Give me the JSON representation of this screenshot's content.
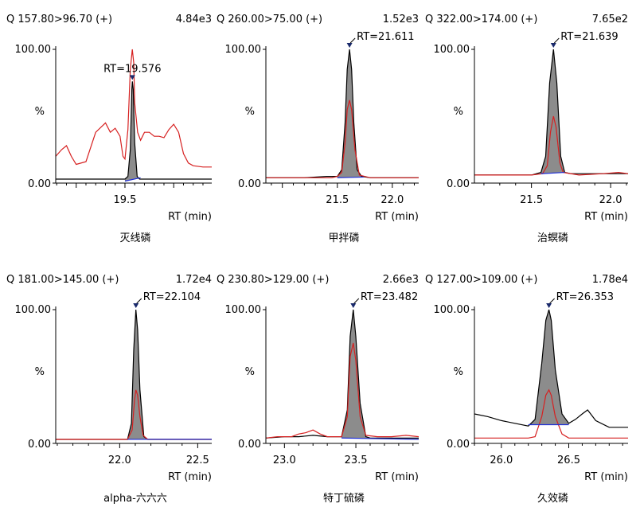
{
  "chart_data": [
    {
      "type": "line",
      "transition": "Q 157.80>96.70 (+)",
      "intensity": "4.84e3",
      "compound": "灭线磷",
      "rt_label": "RT=19.576",
      "ylabel": "%",
      "xlabel": "RT (min)",
      "ylim": [
        0,
        100
      ],
      "yticks": [
        "100.00",
        "0.00"
      ],
      "xlim": [
        18.79,
        20.39
      ],
      "xticks": [
        19.5
      ],
      "xtick_labels": [
        "19.5"
      ],
      "peak_rt": 19.576,
      "quant": {
        "x": [
          18.79,
          19.1,
          19.3,
          19.45,
          19.5,
          19.53,
          19.555,
          19.57,
          19.576,
          19.585,
          19.6,
          19.625,
          19.65,
          19.7,
          19.8,
          20.0,
          20.2,
          20.39
        ],
        "y": [
          3,
          3,
          3,
          3,
          3,
          5,
          25,
          70,
          76,
          70,
          30,
          5,
          3,
          3,
          3,
          3,
          3,
          3
        ]
      },
      "qual": {
        "x": [
          18.79,
          18.85,
          18.9,
          18.95,
          19.0,
          19.1,
          19.2,
          19.3,
          19.35,
          19.4,
          19.45,
          19.48,
          19.5,
          19.53,
          19.555,
          19.575,
          19.59,
          19.6,
          19.63,
          19.66,
          19.7,
          19.75,
          19.8,
          19.85,
          19.9,
          19.95,
          20.0,
          20.05,
          20.1,
          20.15,
          20.2,
          20.3,
          20.39
        ],
        "y": [
          20,
          25,
          28,
          20,
          14,
          16,
          38,
          45,
          38,
          41,
          35,
          20,
          18,
          40,
          85,
          100,
          90,
          60,
          38,
          32,
          38,
          38,
          35,
          35,
          34,
          40,
          44,
          38,
          22,
          15,
          13,
          12,
          12
        ]
      },
      "baseline": {
        "x": [
          19.5,
          19.66
        ],
        "y": [
          1.5,
          4
        ]
      }
    },
    {
      "type": "line",
      "transition": "Q 260.00>75.00 (+)",
      "intensity": "1.52e3",
      "compound": "甲拌磷",
      "rt_label": "RT=21.611",
      "ylabel": "%",
      "xlabel": "RT (min)",
      "ylim": [
        0,
        100
      ],
      "yticks": [
        "100.00",
        "0.00"
      ],
      "xlim": [
        20.85,
        22.24
      ],
      "xticks": [
        21.5,
        22.0
      ],
      "xtick_labels": [
        "21.5",
        "22.0"
      ],
      "peak_rt": 21.611,
      "quant": {
        "x": [
          20.85,
          21.2,
          21.4,
          21.5,
          21.54,
          21.57,
          21.59,
          21.611,
          21.63,
          21.65,
          21.68,
          21.72,
          21.8,
          22.0,
          22.24
        ],
        "y": [
          4,
          4,
          5,
          5,
          10,
          45,
          85,
          100,
          85,
          45,
          10,
          5,
          4,
          4,
          4
        ]
      },
      "qual": {
        "x": [
          20.85,
          21.2,
          21.45,
          21.5,
          21.54,
          21.57,
          21.59,
          21.611,
          21.63,
          21.66,
          21.7,
          21.8,
          22.0,
          22.24
        ],
        "y": [
          4,
          4,
          4,
          5,
          8,
          30,
          55,
          62,
          55,
          25,
          6,
          4,
          4,
          4
        ]
      },
      "baseline": {
        "x": [
          21.5,
          21.74
        ],
        "y": [
          4,
          4.5
        ]
      }
    },
    {
      "type": "line",
      "transition": "Q 322.00>174.00 (+)",
      "intensity": "7.65e2",
      "compound": "治螟磷",
      "rt_label": "RT=21.639",
      "ylabel": "%",
      "xlabel": "RT (min)",
      "ylim": [
        0,
        100
      ],
      "yticks": [
        "100.00",
        "0.00"
      ],
      "xlim": [
        21.14,
        22.11
      ],
      "xticks": [
        21.5,
        22.0
      ],
      "xtick_labels": [
        "21.5",
        "22.0"
      ],
      "peak_rt": 21.639,
      "quant": {
        "x": [
          21.14,
          21.3,
          21.5,
          21.56,
          21.59,
          21.615,
          21.639,
          21.66,
          21.685,
          21.71,
          21.75,
          21.9,
          22.11
        ],
        "y": [
          6,
          6,
          6,
          8,
          20,
          75,
          100,
          75,
          20,
          8,
          7,
          7,
          7
        ]
      },
      "qual": {
        "x": [
          21.14,
          21.3,
          21.5,
          21.57,
          21.6,
          21.62,
          21.639,
          21.655,
          21.68,
          21.7,
          21.8,
          21.95,
          22.05,
          22.11
        ],
        "y": [
          6,
          6,
          6,
          7,
          13,
          38,
          50,
          42,
          15,
          8,
          6,
          7,
          8,
          7
        ]
      },
      "baseline": {
        "x": [
          21.56,
          21.71
        ],
        "y": [
          7,
          8
        ]
      }
    },
    {
      "type": "line",
      "transition": "Q 181.00>145.00 (+)",
      "intensity": "1.72e4",
      "compound": "alpha-六六六",
      "rt_label": "RT=22.104",
      "ylabel": "%",
      "xlabel": "RT (min)",
      "ylim": [
        0,
        100
      ],
      "yticks": [
        "100.00",
        "0.00"
      ],
      "xlim": [
        21.59,
        22.59
      ],
      "xticks": [
        22.0,
        22.5
      ],
      "xtick_labels": [
        "22.0",
        "22.5"
      ],
      "peak_rt": 22.104,
      "quant": {
        "x": [
          21.59,
          21.8,
          22.0,
          22.05,
          22.075,
          22.09,
          22.104,
          22.115,
          22.13,
          22.155,
          22.18,
          22.3,
          22.59
        ],
        "y": [
          3,
          3,
          3,
          3,
          15,
          70,
          100,
          85,
          40,
          5,
          3,
          3,
          3
        ]
      },
      "qual": {
        "x": [
          21.59,
          21.8,
          22.0,
          22.05,
          22.08,
          22.095,
          22.104,
          22.115,
          22.13,
          22.15,
          22.18,
          22.3,
          22.59
        ],
        "y": [
          3,
          3,
          3,
          3,
          10,
          32,
          40,
          36,
          20,
          6,
          3,
          3,
          3
        ]
      },
      "baseline": {
        "x": [
          22.05,
          22.59
        ],
        "y": [
          3,
          3
        ]
      }
    },
    {
      "type": "line",
      "transition": "Q 230.80>129.00 (+)",
      "intensity": "2.66e3",
      "compound": "特丁硫磷",
      "rt_label": "RT=23.482",
      "ylabel": "%",
      "xlabel": "RT (min)",
      "ylim": [
        0,
        100
      ],
      "yticks": [
        "100.00",
        "0.00"
      ],
      "xlim": [
        22.87,
        23.94
      ],
      "xticks": [
        23.0,
        23.5
      ],
      "xtick_labels": [
        "23.0",
        "23.5"
      ],
      "peak_rt": 23.482,
      "quant": {
        "x": [
          22.87,
          23.0,
          23.1,
          23.2,
          23.3,
          23.4,
          23.44,
          23.46,
          23.482,
          23.5,
          23.53,
          23.57,
          23.6,
          23.7,
          23.8,
          23.94
        ],
        "y": [
          4,
          5,
          5,
          6,
          5,
          5,
          25,
          80,
          100,
          80,
          30,
          5,
          4,
          4,
          4,
          4
        ]
      },
      "qual": {
        "x": [
          22.87,
          22.95,
          23.05,
          23.1,
          23.15,
          23.2,
          23.25,
          23.3,
          23.4,
          23.44,
          23.46,
          23.482,
          23.5,
          23.53,
          23.57,
          23.65,
          23.75,
          23.85,
          23.94
        ],
        "y": [
          4,
          5,
          5,
          7,
          8,
          10,
          7,
          5,
          5,
          20,
          65,
          75,
          62,
          20,
          6,
          5,
          5,
          6,
          5
        ]
      },
      "baseline": {
        "x": [
          23.4,
          23.94
        ],
        "y": [
          4,
          3
        ]
      }
    },
    {
      "type": "line",
      "transition": "Q 127.00>109.00 (+)",
      "intensity": "1.78e4",
      "compound": "久效磷",
      "rt_label": "RT=26.353",
      "ylabel": "%",
      "xlabel": "RT (min)",
      "ylim": [
        0,
        100
      ],
      "yticks": [
        "100.00",
        "0.00"
      ],
      "xlim": [
        25.8,
        26.94
      ],
      "xticks": [
        26.0,
        26.5
      ],
      "xtick_labels": [
        "26.0",
        "26.5"
      ],
      "peak_rt": 26.353,
      "quant": {
        "x": [
          25.8,
          25.9,
          26.0,
          26.1,
          26.2,
          26.25,
          26.3,
          26.33,
          26.353,
          26.37,
          26.4,
          26.45,
          26.5,
          26.55,
          26.6,
          26.64,
          26.7,
          26.8,
          26.94
        ],
        "y": [
          22,
          20,
          17,
          15,
          13,
          18,
          60,
          92,
          100,
          92,
          55,
          22,
          15,
          18,
          22,
          25,
          17,
          12,
          12
        ]
      },
      "qual": {
        "x": [
          25.8,
          25.9,
          26.0,
          26.1,
          26.2,
          26.25,
          26.3,
          26.33,
          26.353,
          26.37,
          26.4,
          26.45,
          26.5,
          26.6,
          26.8,
          26.94
        ],
        "y": [
          4,
          4,
          4,
          4,
          4,
          5,
          20,
          36,
          40,
          36,
          20,
          7,
          4,
          4,
          4,
          4
        ]
      },
      "baseline": {
        "x": [
          26.2,
          26.5
        ],
        "y": [
          14,
          14
        ]
      }
    }
  ]
}
